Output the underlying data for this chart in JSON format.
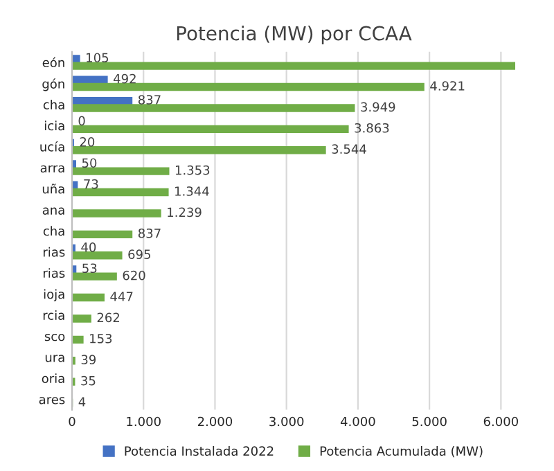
{
  "chart_data": {
    "type": "bar",
    "orientation": "horizontal",
    "title": "Potencia (MW) por CCAA",
    "categories": [
      "eón",
      "gón",
      "cha",
      "icia",
      "ucía",
      "arra",
      "uña",
      "ana",
      "cha",
      "rias",
      "rias",
      "ioja",
      "rcia",
      "sco",
      "ura",
      "oria",
      "ares"
    ],
    "series": [
      {
        "name": "Potencia Instalada 2022",
        "color": "#4472c4",
        "values": [
          105,
          492,
          837,
          0,
          20,
          50,
          73,
          null,
          null,
          40,
          53,
          null,
          null,
          null,
          null,
          null,
          null
        ],
        "value_labels": [
          "105",
          "492",
          "837",
          "0",
          "20",
          "50",
          "73",
          null,
          null,
          "40",
          "53",
          null,
          null,
          null,
          null,
          null,
          null
        ]
      },
      {
        "name": "Potencia Acumulada (MW)",
        "color": "#70ad47",
        "values": [
          6200,
          4921,
          3949,
          3863,
          3544,
          1353,
          1344,
          1239,
          837,
          695,
          620,
          447,
          262,
          153,
          39,
          35,
          4
        ],
        "value_labels": [
          null,
          "4.921",
          "3.949",
          "3.863",
          "3.544",
          "1.353",
          "1.344",
          "1.239",
          "837",
          "695",
          "620",
          "447",
          "262",
          "153",
          "39",
          "35",
          "4"
        ]
      }
    ],
    "xlim": [
      0,
      6200
    ],
    "xticks": [
      {
        "value": 0,
        "label": "0"
      },
      {
        "value": 1000,
        "label": "1.000"
      },
      {
        "value": 2000,
        "label": "2.000"
      },
      {
        "value": 3000,
        "label": "3.000"
      },
      {
        "value": 4000,
        "label": "4.000"
      },
      {
        "value": 5000,
        "label": "5.000"
      },
      {
        "value": 6000,
        "label": "6.000"
      }
    ],
    "grid": "x",
    "legend": "bottom"
  }
}
